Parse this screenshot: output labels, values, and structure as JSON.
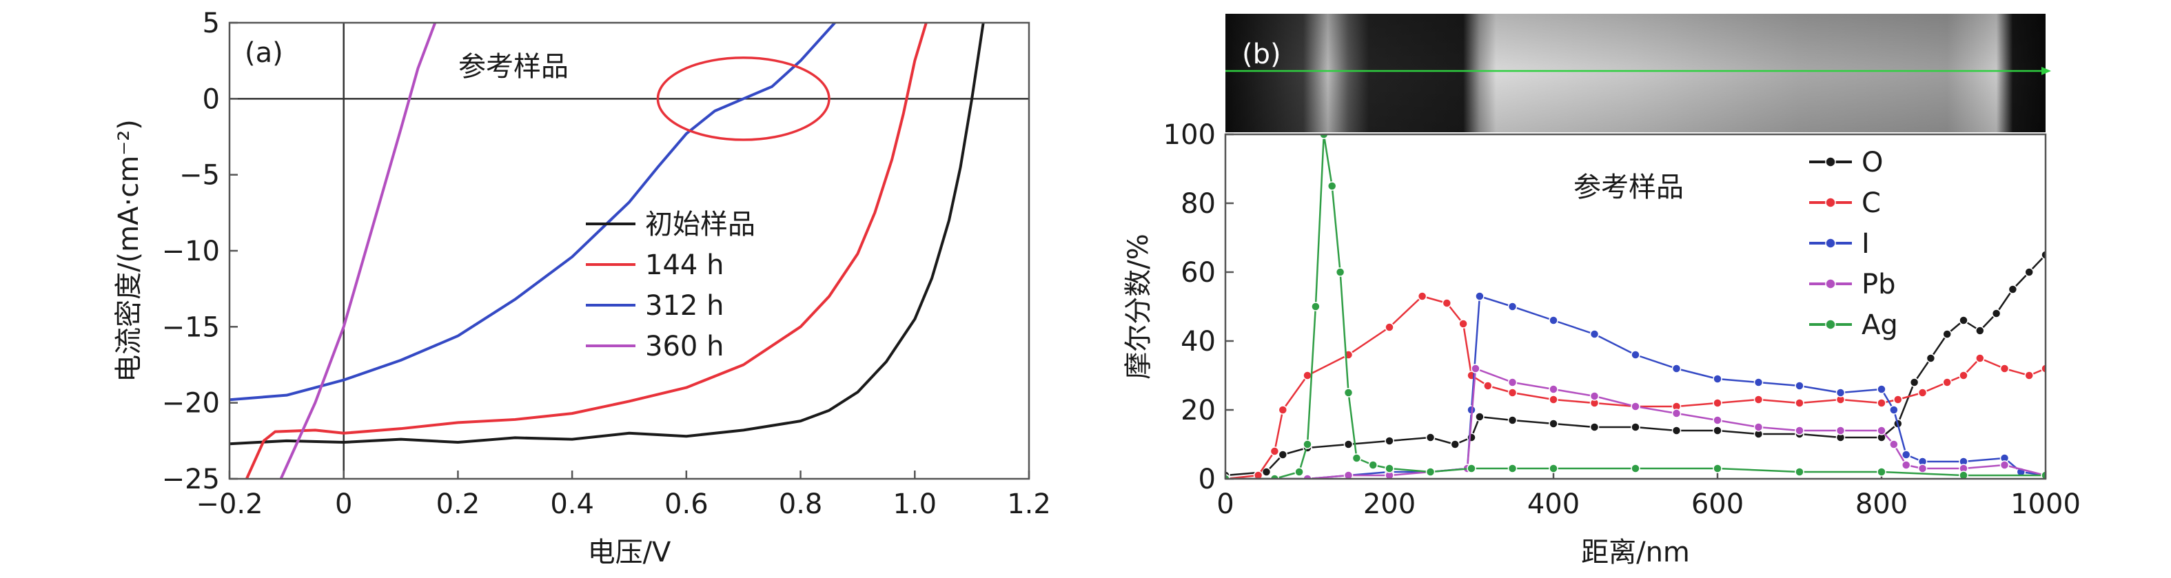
{
  "chart_data": [
    {
      "id": "a",
      "type": "line",
      "panel_label": "(a)",
      "annotation": "参考样品",
      "xlabel": "电压/V",
      "ylabel": "电流密度/(mA·cm⁻²)",
      "xlim": [
        -0.2,
        1.2
      ],
      "ylim": [
        -25,
        5
      ],
      "xticks": [
        -0.2,
        0,
        0.2,
        0.4,
        0.6,
        0.8,
        1.0,
        1.2
      ],
      "xtick_labels": [
        "−0.2",
        "0",
        "0.2",
        "0.4",
        "0.6",
        "0.8",
        "1.0",
        "1.2"
      ],
      "yticks": [
        -25,
        -20,
        -15,
        -10,
        -5,
        0,
        5
      ],
      "ytick_labels": [
        "−25",
        "−20",
        "−15",
        "−10",
        "−5",
        "0",
        "5"
      ],
      "reference_lines": {
        "x": 0,
        "y": 0
      },
      "highlight_ellipse": {
        "cx": 0.7,
        "cy": 0,
        "rx": 0.15,
        "ry": 2.7,
        "color": "#e8323a"
      },
      "legend_position": "center-right",
      "series": [
        {
          "name": "初始样品",
          "color": "#1a1a1a",
          "points": [
            [
              -0.2,
              -22.7
            ],
            [
              -0.15,
              -22.6
            ],
            [
              -0.1,
              -22.5
            ],
            [
              0,
              -22.6
            ],
            [
              0.1,
              -22.4
            ],
            [
              0.2,
              -22.6
            ],
            [
              0.3,
              -22.3
            ],
            [
              0.4,
              -22.4
            ],
            [
              0.5,
              -22.0
            ],
            [
              0.6,
              -22.2
            ],
            [
              0.7,
              -21.8
            ],
            [
              0.8,
              -21.2
            ],
            [
              0.85,
              -20.5
            ],
            [
              0.9,
              -19.3
            ],
            [
              0.95,
              -17.3
            ],
            [
              1.0,
              -14.5
            ],
            [
              1.03,
              -11.8
            ],
            [
              1.06,
              -8.0
            ],
            [
              1.08,
              -4.5
            ],
            [
              1.1,
              0
            ],
            [
              1.12,
              5
            ]
          ]
        },
        {
          "name": "144 h",
          "color": "#e8323a",
          "points": [
            [
              -0.17,
              -25
            ],
            [
              -0.14,
              -22.5
            ],
            [
              -0.12,
              -21.9
            ],
            [
              -0.05,
              -21.8
            ],
            [
              0,
              -22.0
            ],
            [
              0.1,
              -21.7
            ],
            [
              0.2,
              -21.3
            ],
            [
              0.3,
              -21.1
            ],
            [
              0.4,
              -20.7
            ],
            [
              0.5,
              -19.9
            ],
            [
              0.6,
              -19.0
            ],
            [
              0.7,
              -17.5
            ],
            [
              0.8,
              -15.0
            ],
            [
              0.85,
              -13.0
            ],
            [
              0.9,
              -10.2
            ],
            [
              0.93,
              -7.5
            ],
            [
              0.96,
              -4.0
            ],
            [
              0.98,
              -1.0
            ],
            [
              1.0,
              2.5
            ],
            [
              1.02,
              5
            ]
          ]
        },
        {
          "name": "312 h",
          "color": "#3449c4",
          "points": [
            [
              -0.2,
              -19.8
            ],
            [
              -0.1,
              -19.5
            ],
            [
              0,
              -18.5
            ],
            [
              0.1,
              -17.2
            ],
            [
              0.2,
              -15.6
            ],
            [
              0.3,
              -13.2
            ],
            [
              0.4,
              -10.4
            ],
            [
              0.5,
              -6.8
            ],
            [
              0.55,
              -4.5
            ],
            [
              0.6,
              -2.3
            ],
            [
              0.65,
              -0.8
            ],
            [
              0.7,
              0
            ],
            [
              0.75,
              0.8
            ],
            [
              0.8,
              2.5
            ],
            [
              0.86,
              5
            ]
          ]
        },
        {
          "name": "360 h",
          "color": "#b34fc0",
          "points": [
            [
              -0.11,
              -25
            ],
            [
              -0.05,
              -20
            ],
            [
              0,
              -15
            ],
            [
              0.05,
              -8.5
            ],
            [
              0.1,
              -2
            ],
            [
              0.13,
              2
            ],
            [
              0.16,
              5
            ]
          ]
        }
      ]
    },
    {
      "id": "b",
      "type": "line",
      "panel_label": "(b)",
      "annotation": "参考样品",
      "xlabel": "距离/nm",
      "ylabel": "摩尔分数/%",
      "xlim": [
        0,
        1000
      ],
      "ylim": [
        0,
        100
      ],
      "xticks": [
        0,
        200,
        400,
        600,
        800,
        1000
      ],
      "xtick_labels": [
        "0",
        "200",
        "400",
        "600",
        "800",
        "1000"
      ],
      "yticks": [
        0,
        20,
        40,
        60,
        80,
        100
      ],
      "ytick_labels": [
        "0",
        "20",
        "40",
        "60",
        "80",
        "100"
      ],
      "legend_position": "top-right",
      "image_strip": true,
      "series": [
        {
          "name": "O",
          "color": "#1a1a1a",
          "points": [
            [
              0,
              1
            ],
            [
              50,
              2
            ],
            [
              70,
              7
            ],
            [
              100,
              9
            ],
            [
              150,
              10
            ],
            [
              200,
              11
            ],
            [
              250,
              12
            ],
            [
              280,
              10
            ],
            [
              300,
              12
            ],
            [
              310,
              18
            ],
            [
              350,
              17
            ],
            [
              400,
              16
            ],
            [
              450,
              15
            ],
            [
              500,
              15
            ],
            [
              550,
              14
            ],
            [
              600,
              14
            ],
            [
              650,
              13
            ],
            [
              700,
              13
            ],
            [
              750,
              12
            ],
            [
              800,
              12
            ],
            [
              820,
              16
            ],
            [
              840,
              28
            ],
            [
              860,
              35
            ],
            [
              880,
              42
            ],
            [
              900,
              46
            ],
            [
              920,
              43
            ],
            [
              940,
              48
            ],
            [
              960,
              55
            ],
            [
              980,
              60
            ],
            [
              1000,
              65
            ]
          ]
        },
        {
          "name": "C",
          "color": "#e8323a",
          "points": [
            [
              0,
              0
            ],
            [
              40,
              1
            ],
            [
              60,
              8
            ],
            [
              70,
              20
            ],
            [
              100,
              30
            ],
            [
              150,
              36
            ],
            [
              200,
              44
            ],
            [
              240,
              53
            ],
            [
              270,
              51
            ],
            [
              290,
              45
            ],
            [
              300,
              30
            ],
            [
              320,
              27
            ],
            [
              350,
              25
            ],
            [
              400,
              23
            ],
            [
              450,
              22
            ],
            [
              500,
              21
            ],
            [
              550,
              21
            ],
            [
              600,
              22
            ],
            [
              650,
              23
            ],
            [
              700,
              22
            ],
            [
              750,
              23
            ],
            [
              800,
              22
            ],
            [
              820,
              23
            ],
            [
              850,
              25
            ],
            [
              880,
              28
            ],
            [
              900,
              30
            ],
            [
              920,
              35
            ],
            [
              950,
              32
            ],
            [
              980,
              30
            ],
            [
              1000,
              32
            ]
          ]
        },
        {
          "name": "I",
          "color": "#3449c4",
          "points": [
            [
              0,
              0
            ],
            [
              100,
              0
            ],
            [
              150,
              1
            ],
            [
              200,
              2
            ],
            [
              250,
              2
            ],
            [
              295,
              3
            ],
            [
              300,
              20
            ],
            [
              310,
              53
            ],
            [
              350,
              50
            ],
            [
              400,
              46
            ],
            [
              450,
              42
            ],
            [
              500,
              36
            ],
            [
              550,
              32
            ],
            [
              600,
              29
            ],
            [
              650,
              28
            ],
            [
              700,
              27
            ],
            [
              750,
              25
            ],
            [
              800,
              26
            ],
            [
              815,
              20
            ],
            [
              830,
              7
            ],
            [
              850,
              5
            ],
            [
              900,
              5
            ],
            [
              950,
              6
            ],
            [
              970,
              2
            ],
            [
              1000,
              1
            ]
          ]
        },
        {
          "name": "Pb",
          "color": "#b34fc0",
          "points": [
            [
              0,
              0
            ],
            [
              100,
              0
            ],
            [
              150,
              1
            ],
            [
              200,
              1
            ],
            [
              250,
              2
            ],
            [
              295,
              3
            ],
            [
              305,
              32
            ],
            [
              350,
              28
            ],
            [
              400,
              26
            ],
            [
              450,
              24
            ],
            [
              500,
              21
            ],
            [
              550,
              19
            ],
            [
              600,
              17
            ],
            [
              650,
              15
            ],
            [
              700,
              14
            ],
            [
              750,
              14
            ],
            [
              800,
              14
            ],
            [
              815,
              10
            ],
            [
              830,
              4
            ],
            [
              850,
              3
            ],
            [
              900,
              3
            ],
            [
              950,
              4
            ],
            [
              1000,
              1
            ]
          ]
        },
        {
          "name": "Ag",
          "color": "#2f9e45",
          "points": [
            [
              0,
              0
            ],
            [
              60,
              0
            ],
            [
              90,
              2
            ],
            [
              100,
              10
            ],
            [
              110,
              50
            ],
            [
              120,
              100
            ],
            [
              130,
              85
            ],
            [
              140,
              60
            ],
            [
              150,
              25
            ],
            [
              160,
              6
            ],
            [
              180,
              4
            ],
            [
              200,
              3
            ],
            [
              250,
              2
            ],
            [
              300,
              3
            ],
            [
              350,
              3
            ],
            [
              400,
              3
            ],
            [
              500,
              3
            ],
            [
              600,
              3
            ],
            [
              700,
              2
            ],
            [
              800,
              2
            ],
            [
              900,
              1
            ],
            [
              1000,
              1
            ]
          ]
        }
      ]
    }
  ]
}
